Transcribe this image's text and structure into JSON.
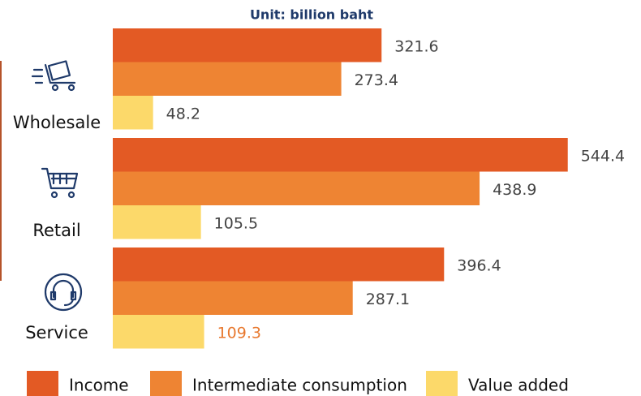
{
  "chart_data": {
    "type": "bar",
    "orientation": "horizontal",
    "subtitle": "Unit: billion baht",
    "categories": [
      "Wholesale",
      "Retail",
      "Service"
    ],
    "series": [
      {
        "name": "Income",
        "color": "#e35a24",
        "values": [
          321.6,
          544.4,
          396.4
        ]
      },
      {
        "name": "Intermediate consumption",
        "color": "#ee8433",
        "values": [
          273.4,
          438.9,
          287.1
        ]
      },
      {
        "name": "Value added",
        "color": "#fcd96a",
        "values": [
          48.2,
          105.5,
          109.3
        ]
      }
    ],
    "xlim": [
      0,
      600
    ]
  }
}
